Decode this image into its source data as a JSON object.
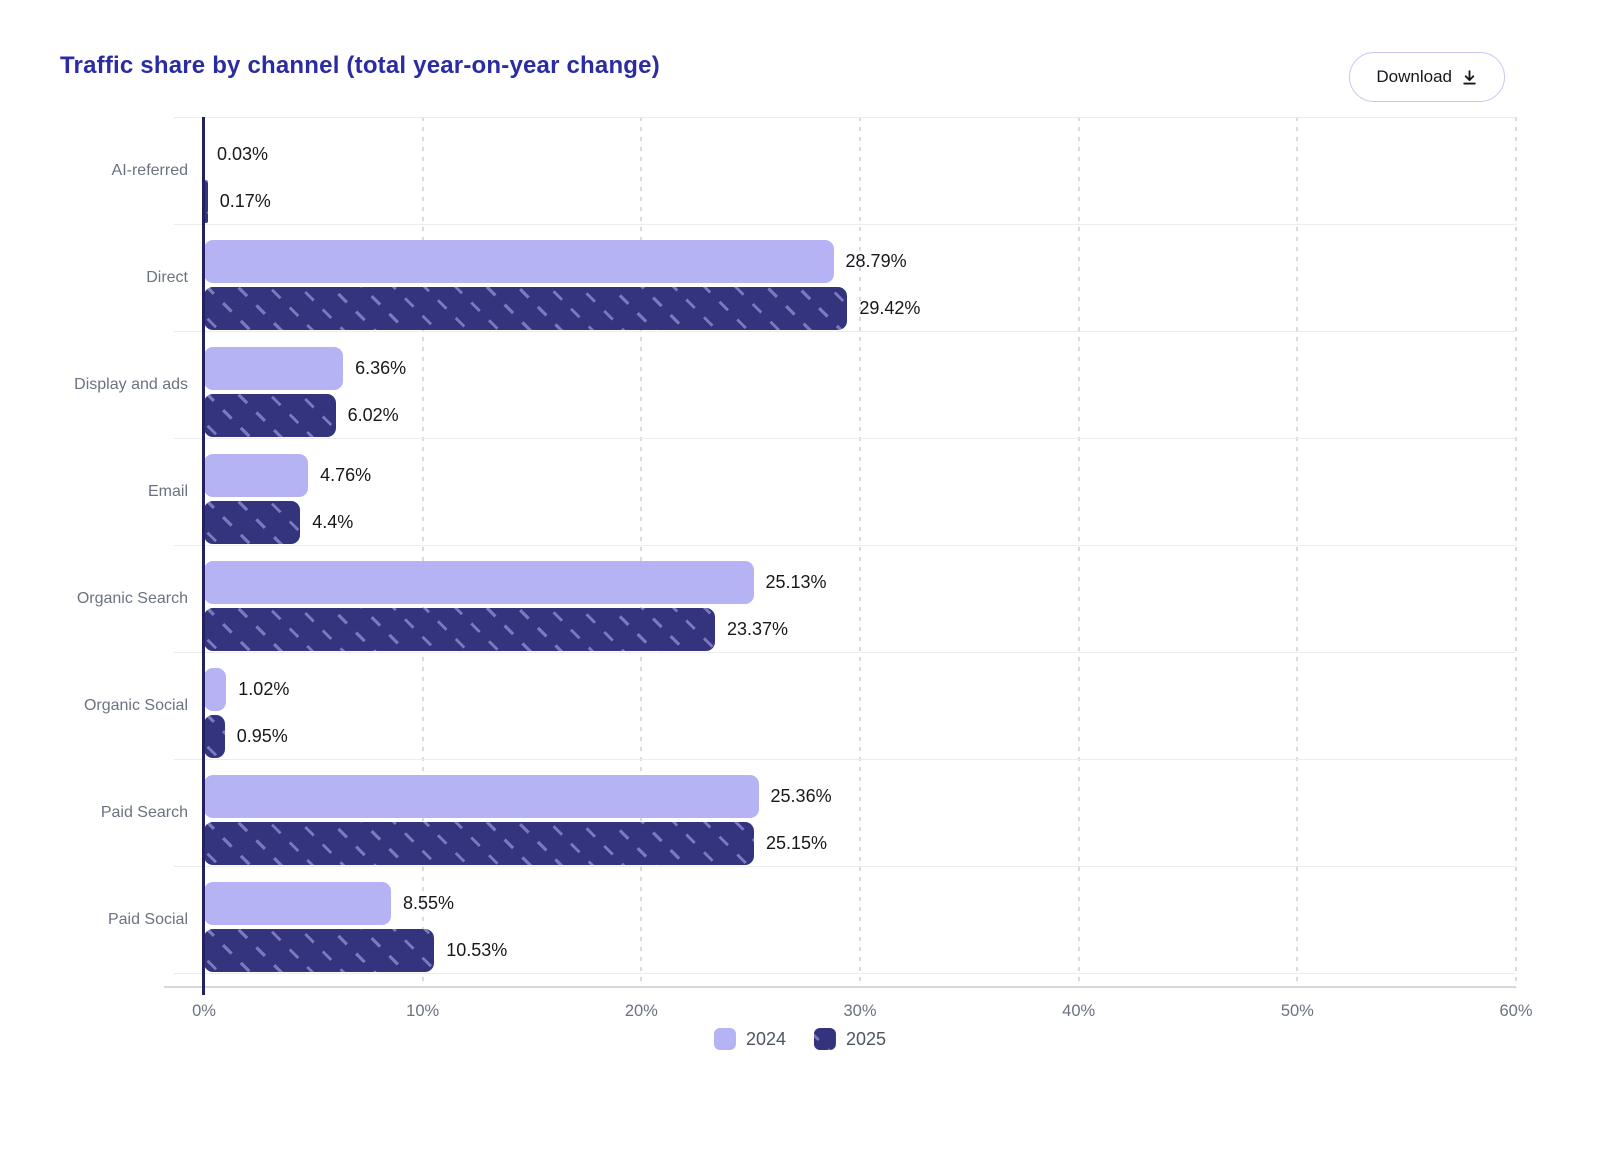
{
  "header": {
    "title": "Traffic share by channel (total year-on-year change)",
    "download_label": "Download"
  },
  "chart_data": {
    "type": "bar",
    "orientation": "horizontal",
    "title": "Traffic share by channel (total year-on-year change)",
    "categories": [
      "AI-referred",
      "Direct",
      "Display and ads",
      "Email",
      "Organic Search",
      "Organic Social",
      "Paid Search",
      "Paid Social"
    ],
    "series": [
      {
        "name": "2024",
        "color": "#b6b3f4",
        "hatch": false,
        "values": [
          0.03,
          28.79,
          6.36,
          4.76,
          25.13,
          1.02,
          25.36,
          8.55
        ],
        "labels": [
          "0.03%",
          "28.79%",
          "6.36%",
          "4.76%",
          "25.13%",
          "1.02%",
          "25.36%",
          "8.55%"
        ]
      },
      {
        "name": "2025",
        "color": "#34347e",
        "hatch": true,
        "values": [
          0.17,
          29.42,
          6.02,
          4.4,
          23.37,
          0.95,
          25.15,
          10.53
        ],
        "labels": [
          "0.17%",
          "29.42%",
          "6.02%",
          "4.4%",
          "23.37%",
          "0.95%",
          "25.15%",
          "10.53%"
        ]
      }
    ],
    "xlim": [
      0,
      60
    ],
    "x_tick_step": 10,
    "x_ticks": [
      "0%",
      "10%",
      "20%",
      "30%",
      "40%",
      "50%",
      "60%"
    ],
    "grid": "vertical-dashed",
    "legend": [
      "2024",
      "2025"
    ],
    "legend_position": "bottom"
  },
  "colors": {
    "title": "#2b2ba3",
    "bar_2024": "#b6b3f4",
    "bar_2025": "#34347e",
    "hatch_dash": "#7b79bd",
    "axis_line": "#23215f",
    "grid_line": "#d9d9e0",
    "label_gray": "#6b7280",
    "value_text": "#17181c",
    "button_border": "#c9c6f7"
  }
}
